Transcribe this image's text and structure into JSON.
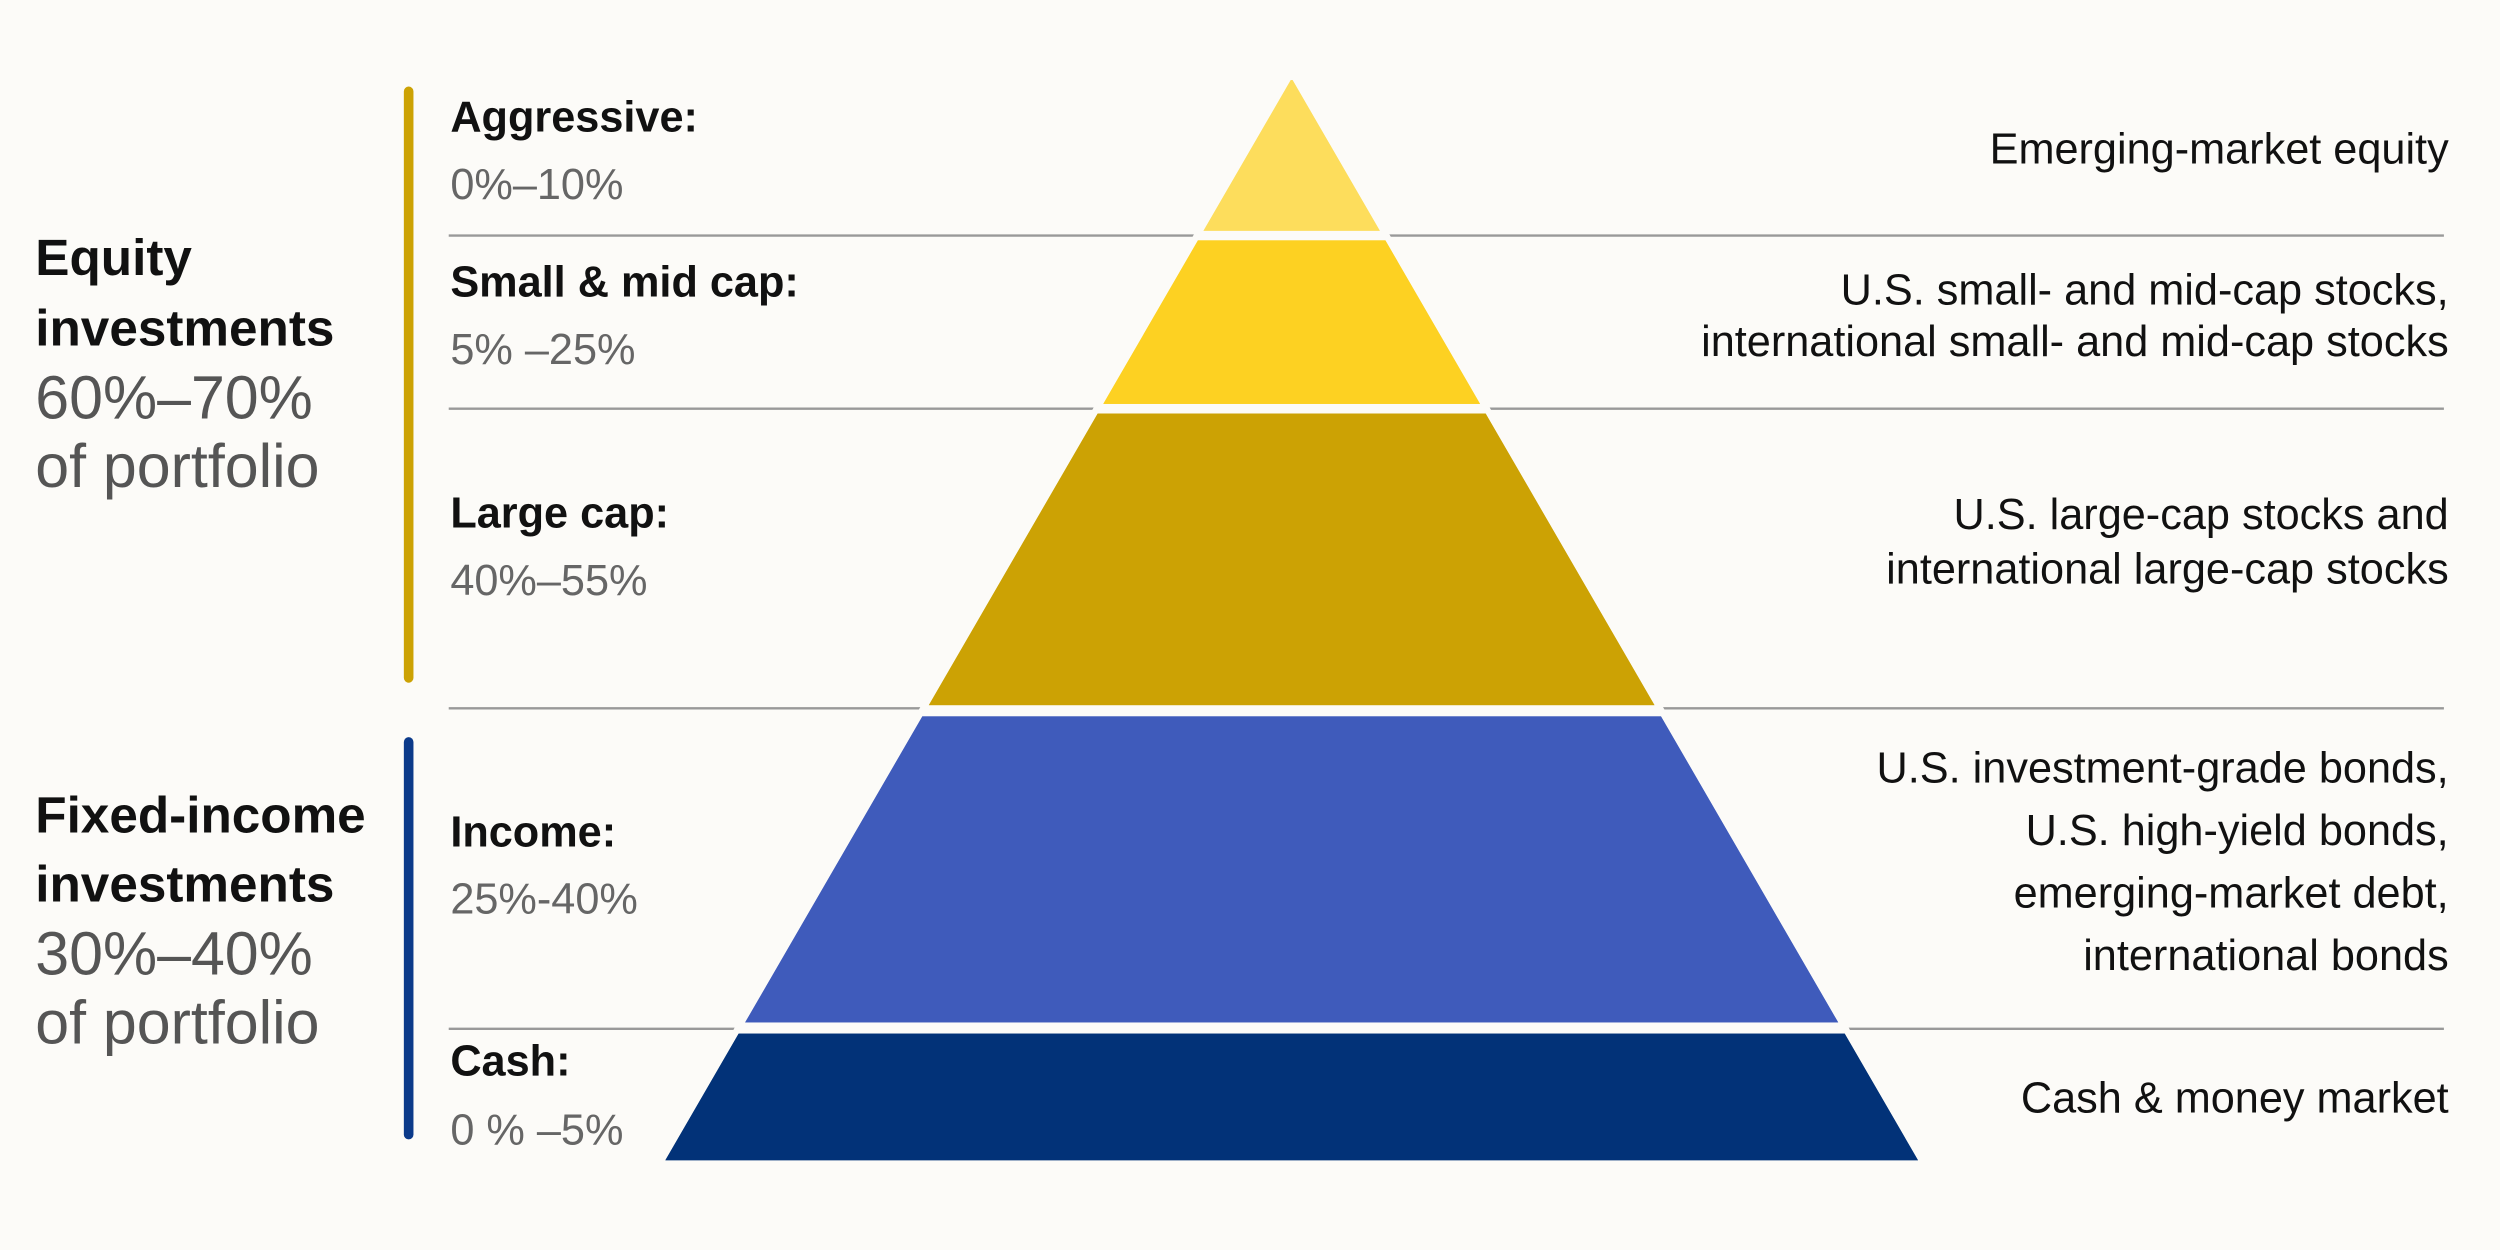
{
  "groups": [
    {
      "title_lines": [
        "Equity",
        "investments"
      ],
      "share_lines": [
        "60%–70%",
        "of portfolio"
      ],
      "color": "#cca204"
    },
    {
      "title_lines": [
        "Fixed-income",
        "investments"
      ],
      "share_lines": [
        "30%–40%",
        "of portfolio"
      ],
      "color": "#0b3a8a"
    }
  ],
  "tiers": [
    {
      "name": "Aggressive:",
      "range": "0%–10%",
      "description": [
        "Emerging-market equity"
      ],
      "color": "#fddd5c"
    },
    {
      "name": "Small & mid cap:",
      "range": "5% –25%",
      "description": [
        "U.S. small- and mid-cap stocks,",
        "international small- and mid-cap stocks"
      ],
      "color": "#fdd122"
    },
    {
      "name": "Large cap:",
      "range": "40%–55%",
      "description": [
        "U.S. large-cap stocks and",
        "international large-cap stocks"
      ],
      "color": "#cca204"
    },
    {
      "name": "Income:",
      "range": "25%-40%",
      "description": [
        "U.S. investment-grade bonds,",
        "U.S. high-yield bonds,",
        "emerging-market debt,",
        "international bonds"
      ],
      "color": "#3f5bbb"
    },
    {
      "name": "Cash:",
      "range": "0 % –5%",
      "description": [
        "Cash & money market"
      ],
      "color": "#023278"
    }
  ]
}
